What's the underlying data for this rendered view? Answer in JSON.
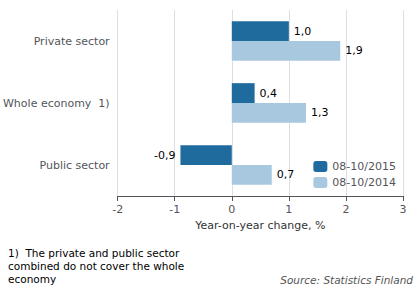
{
  "chart_data": {
    "type": "bar",
    "orientation": "horizontal",
    "categories": [
      "Public sector",
      "Whole economy  1)",
      "Private sector"
    ],
    "series": [
      {
        "name": "08-10/2015",
        "color": "#1F6B9E",
        "values": [
          -0.9,
          0.4,
          1.0
        ],
        "value_labels": [
          "-0,9",
          "0,4",
          "1,0"
        ]
      },
      {
        "name": "08-10/2014",
        "color": "#A8C8E0",
        "values": [
          0.7,
          1.3,
          1.9
        ],
        "value_labels": [
          "0,7",
          "1,3",
          "1,9"
        ]
      }
    ],
    "xlabel": "Year-on-year change, %",
    "xlim": [
      -2,
      3
    ],
    "xticks": [
      -2,
      -1,
      0,
      1,
      2,
      3
    ],
    "grid": true,
    "legend": "lower right",
    "data_labels": true,
    "annotations": [
      "1)  The private and public sector\ncombined do not cover the whole\neconomy",
      "Source: Statistics Finland"
    ]
  }
}
